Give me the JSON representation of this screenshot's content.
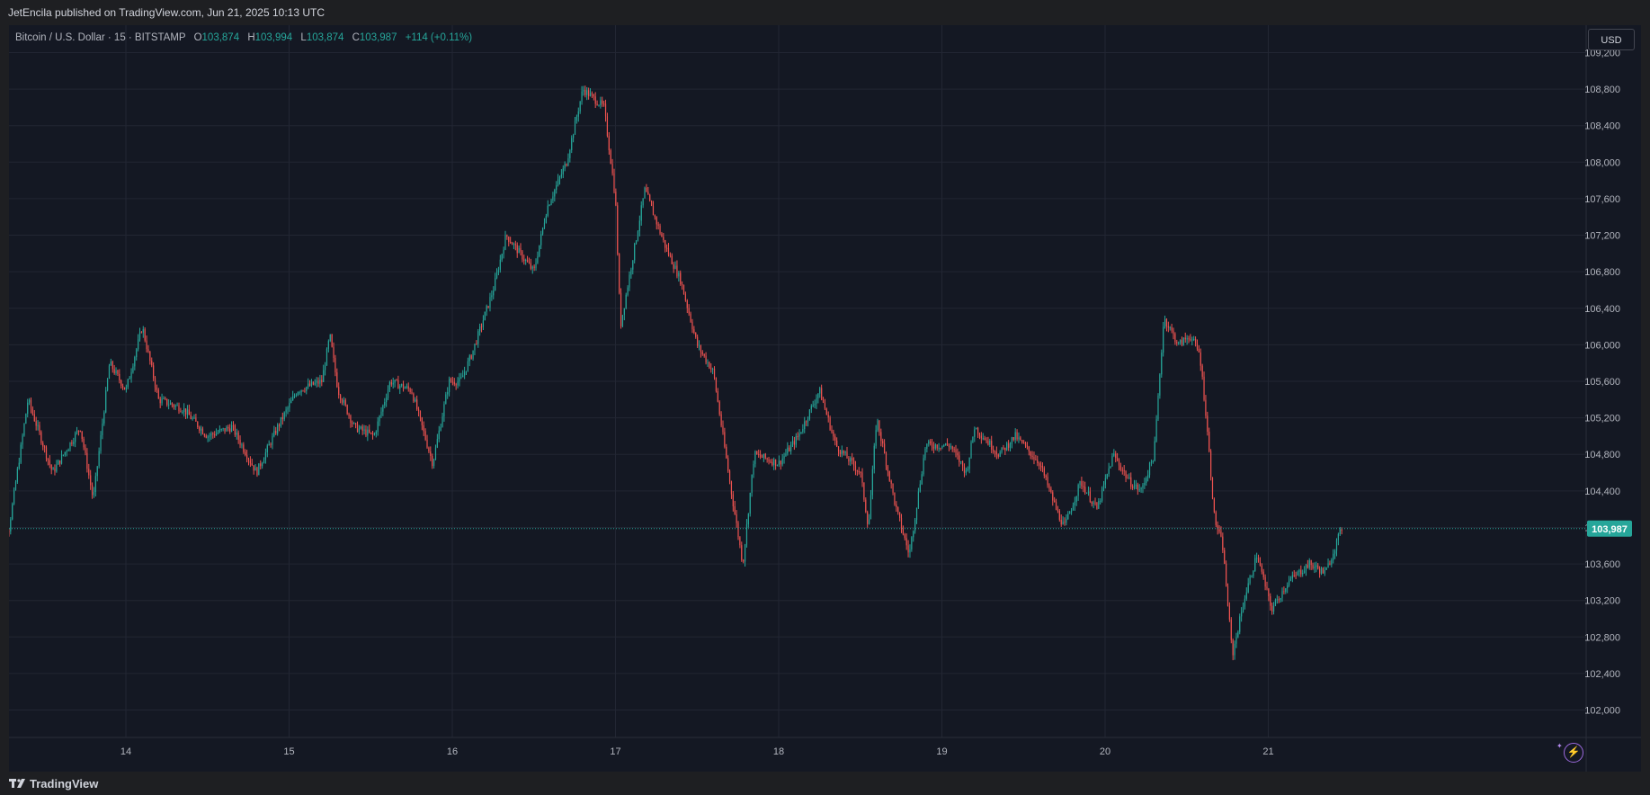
{
  "header": {
    "published_line": "JetEncila published on TradingView.com, Jun 21, 2025 10:13 UTC"
  },
  "legend": {
    "symbol": "Bitcoin / U.S. Dollar · 15 · BITSTAMP",
    "open_label": "O",
    "open": "103,874",
    "high_label": "H",
    "high": "103,994",
    "low_label": "L",
    "low": "103,874",
    "close_label": "C",
    "close": "103,987",
    "change": "+114 (+0.11%)"
  },
  "currency_button": "USD",
  "footer": {
    "brand": "TradingView"
  },
  "colors": {
    "up": "#26a69a",
    "down": "#ef5350",
    "background": "#141823",
    "grid": "#222633",
    "last_price": "#26a69a"
  },
  "icons": {
    "bolt": "lightning-bolt-icon",
    "logo": "tradingview-logo-icon"
  },
  "chart_data": {
    "type": "candlestick",
    "interval": "15",
    "x_tick_labels": [
      "14",
      "15",
      "16",
      "17",
      "18",
      "19",
      "20",
      "21"
    ],
    "y_tick_labels": [
      "102,000",
      "102,400",
      "102,800",
      "103,200",
      "103,600",
      "104,000",
      "104,400",
      "104,800",
      "105,200",
      "105,600",
      "106,000",
      "106,400",
      "106,800",
      "107,200",
      "107,600",
      "108,000",
      "108,400",
      "108,800",
      "109,200"
    ],
    "ylim": [
      101700,
      109500
    ],
    "last_price": 103987,
    "last_price_label": "103,987",
    "grid": true,
    "price_path": [
      [
        13.2,
        104500
      ],
      [
        13.28,
        103950
      ],
      [
        13.4,
        105400
      ],
      [
        13.55,
        104600
      ],
      [
        13.72,
        105100
      ],
      [
        13.8,
        104300
      ],
      [
        13.9,
        105800
      ],
      [
        14.0,
        105500
      ],
      [
        14.1,
        106200
      ],
      [
        14.2,
        105400
      ],
      [
        14.35,
        105300
      ],
      [
        14.5,
        105000
      ],
      [
        14.65,
        105100
      ],
      [
        14.8,
        104600
      ],
      [
        14.93,
        105100
      ],
      [
        15.05,
        105500
      ],
      [
        15.2,
        105600
      ],
      [
        15.25,
        106100
      ],
      [
        15.3,
        105500
      ],
      [
        15.4,
        105100
      ],
      [
        15.52,
        105000
      ],
      [
        15.62,
        105600
      ],
      [
        15.75,
        105500
      ],
      [
        15.88,
        104700
      ],
      [
        15.98,
        105600
      ],
      [
        16.05,
        105600
      ],
      [
        16.12,
        105900
      ],
      [
        16.25,
        106600
      ],
      [
        16.33,
        107200
      ],
      [
        16.5,
        106800
      ],
      [
        16.58,
        107500
      ],
      [
        16.7,
        108000
      ],
      [
        16.8,
        108800
      ],
      [
        16.93,
        108600
      ],
      [
        17.0,
        107600
      ],
      [
        17.03,
        106200
      ],
      [
        17.12,
        107100
      ],
      [
        17.18,
        107700
      ],
      [
        17.3,
        107100
      ],
      [
        17.4,
        106700
      ],
      [
        17.5,
        106000
      ],
      [
        17.6,
        105700
      ],
      [
        17.7,
        104500
      ],
      [
        17.78,
        103600
      ],
      [
        17.85,
        104800
      ],
      [
        18.0,
        104700
      ],
      [
        18.12,
        105000
      ],
      [
        18.25,
        105500
      ],
      [
        18.35,
        104900
      ],
      [
        18.5,
        104600
      ],
      [
        18.55,
        104000
      ],
      [
        18.6,
        105200
      ],
      [
        18.72,
        104200
      ],
      [
        18.8,
        103700
      ],
      [
        18.9,
        104900
      ],
      [
        19.05,
        104900
      ],
      [
        19.15,
        104600
      ],
      [
        19.2,
        105100
      ],
      [
        19.35,
        104800
      ],
      [
        19.45,
        105000
      ],
      [
        19.6,
        104700
      ],
      [
        19.7,
        104200
      ],
      [
        19.75,
        104000
      ],
      [
        19.85,
        104500
      ],
      [
        19.95,
        104200
      ],
      [
        20.05,
        104800
      ],
      [
        20.15,
        104500
      ],
      [
        20.22,
        104400
      ],
      [
        20.3,
        104800
      ],
      [
        20.36,
        106300
      ],
      [
        20.45,
        106000
      ],
      [
        20.52,
        106100
      ],
      [
        20.58,
        105900
      ],
      [
        20.62,
        105200
      ],
      [
        20.67,
        104100
      ],
      [
        20.72,
        103800
      ],
      [
        20.78,
        102600
      ],
      [
        20.85,
        103200
      ],
      [
        20.93,
        103700
      ],
      [
        21.02,
        103100
      ],
      [
        21.12,
        103400
      ],
      [
        21.25,
        103600
      ],
      [
        21.35,
        103500
      ],
      [
        21.45,
        103987
      ]
    ]
  }
}
